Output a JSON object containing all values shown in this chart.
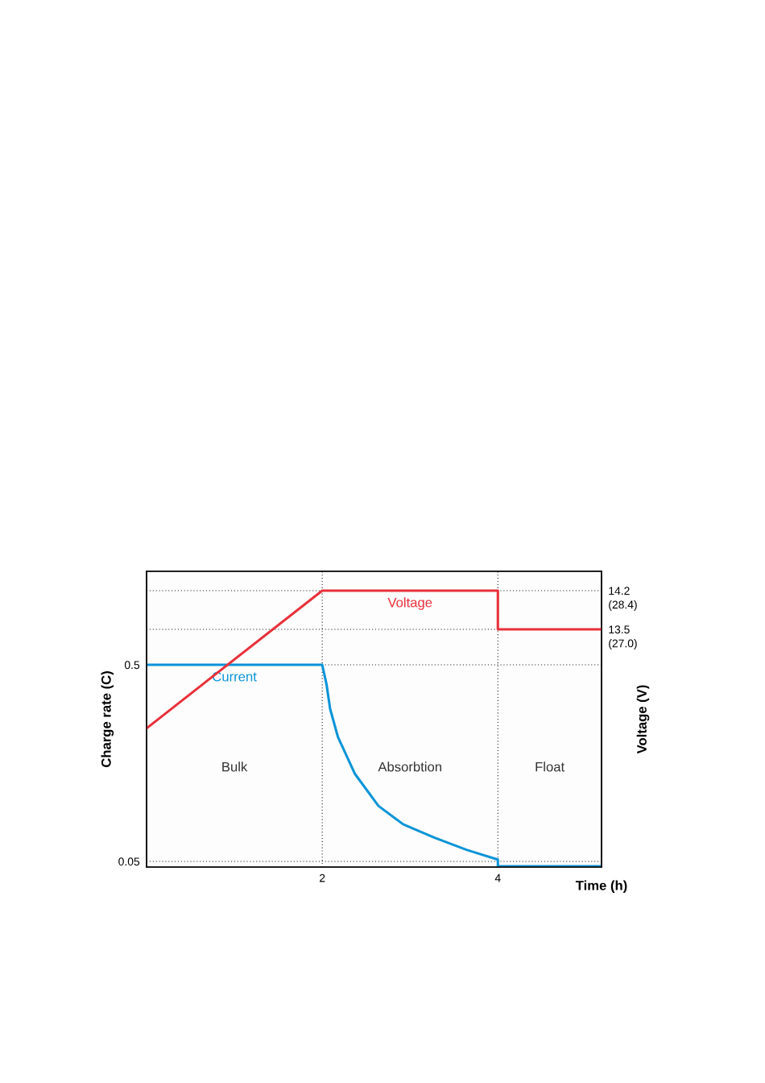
{
  "chart_data": {
    "type": "line",
    "xlabel": "Time (h)",
    "ylabel": "Charge rate (C)",
    "y2label": "Voltage (V)",
    "xlim": [
      0,
      5.18
    ],
    "xticks": [
      {
        "value": 2,
        "label": "2"
      },
      {
        "value": 4,
        "label": "4"
      }
    ],
    "ylim": [
      0.037,
      0.714
    ],
    "yticks": [
      0.05,
      0.5
    ],
    "y2lim": [
      9.2,
      14.55
    ],
    "y2ticks": [
      13.5,
      14.2
    ],
    "y3lim": [
      18.9,
      29.6
    ],
    "y3ticks": [
      {
        "value": 27.0,
        "label": "(27.0)"
      },
      {
        "value": 28.4,
        "label": "(28.4)"
      }
    ],
    "grid": true,
    "line_style": "solid",
    "marker": "none",
    "series": [
      {
        "name": "Voltage",
        "color": "#e8303a",
        "axis": "y2",
        "x": [
          0,
          2,
          4,
          4,
          5.18
        ],
        "values": [
          11.71,
          14.2,
          14.2,
          13.5,
          13.5
        ]
      },
      {
        "name": "Current",
        "color": "#0a94d8",
        "axis": "y",
        "x": [
          0,
          2,
          2.05,
          2.09,
          2.18,
          2.37,
          2.64,
          2.92,
          3.28,
          3.65,
          4,
          4,
          5.18
        ],
        "values": [
          0.5,
          0.5,
          0.454,
          0.399,
          0.334,
          0.251,
          0.177,
          0.135,
          0.104,
          0.076,
          0.054,
          0.039,
          0.039
        ]
      }
    ],
    "annotations": [
      "Bulk",
      "Absorbtion",
      "Float"
    ]
  }
}
